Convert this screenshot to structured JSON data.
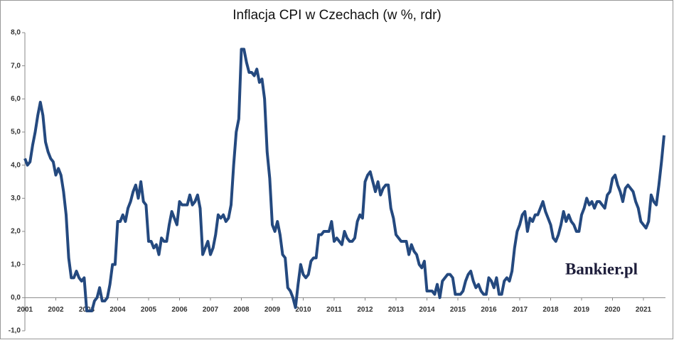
{
  "chart_data": {
    "type": "line",
    "title": "Inflacja CPI w Czechach (w %, rdr)",
    "brand": "Bankier.pl",
    "color": "#24497f",
    "categories": [
      "2001",
      null,
      null,
      null,
      null,
      null,
      null,
      null,
      null,
      null,
      null,
      null,
      "2002",
      null,
      null,
      null,
      null,
      null,
      null,
      null,
      null,
      null,
      null,
      null,
      "2003",
      null,
      null,
      null,
      null,
      null,
      null,
      null,
      null,
      null,
      null,
      null,
      "2004",
      null,
      null,
      null,
      null,
      null,
      null,
      null,
      null,
      null,
      null,
      null,
      "2005",
      null,
      null,
      null,
      null,
      null,
      null,
      null,
      null,
      null,
      null,
      null,
      "2006",
      null,
      null,
      null,
      null,
      null,
      null,
      null,
      null,
      null,
      null,
      null,
      "2007",
      null,
      null,
      null,
      null,
      null,
      null,
      null,
      null,
      null,
      null,
      null,
      "2008",
      null,
      null,
      null,
      null,
      null,
      null,
      null,
      null,
      null,
      null,
      null,
      "2009",
      null,
      null,
      null,
      null,
      null,
      null,
      null,
      null,
      null,
      null,
      null,
      "2010",
      null,
      null,
      null,
      null,
      null,
      null,
      null,
      null,
      null,
      null,
      null,
      "2011",
      null,
      null,
      null,
      null,
      null,
      null,
      null,
      null,
      null,
      null,
      null,
      "2012",
      null,
      null,
      null,
      null,
      null,
      null,
      null,
      null,
      null,
      null,
      null,
      "2013",
      null,
      null,
      null,
      null,
      null,
      null,
      null,
      null,
      null,
      null,
      null,
      "2014",
      null,
      null,
      null,
      null,
      null,
      null,
      null,
      null,
      null,
      null,
      null,
      "2015",
      null,
      null,
      null,
      null,
      null,
      null,
      null,
      null,
      null,
      null,
      null,
      "2016",
      null,
      null,
      null,
      null,
      null,
      null,
      null,
      null,
      null,
      null,
      null,
      "2017",
      null,
      null,
      null,
      null,
      null,
      null,
      null,
      null,
      null,
      null,
      null,
      "2018",
      null,
      null,
      null,
      null,
      null,
      null,
      null,
      null,
      null,
      null,
      null,
      "2019",
      null,
      null,
      null,
      null,
      null,
      null,
      null,
      null,
      null,
      null,
      null,
      "2020",
      null,
      null,
      null,
      null,
      null,
      null,
      null,
      null,
      null,
      null,
      null,
      "2021",
      null,
      null,
      null,
      null,
      null,
      null,
      null,
      null
    ],
    "values": [
      4.2,
      4.0,
      4.1,
      4.6,
      5.0,
      5.5,
      5.9,
      5.5,
      4.7,
      4.4,
      4.2,
      4.1,
      3.7,
      3.9,
      3.7,
      3.2,
      2.5,
      1.2,
      0.6,
      0.6,
      0.8,
      0.6,
      0.5,
      0.6,
      -0.4,
      -0.4,
      -0.4,
      -0.1,
      0.0,
      0.3,
      -0.1,
      -0.1,
      0.0,
      0.4,
      1.0,
      1.0,
      2.3,
      2.3,
      2.5,
      2.3,
      2.7,
      2.9,
      3.2,
      3.4,
      3.0,
      3.5,
      2.9,
      2.8,
      1.7,
      1.7,
      1.5,
      1.6,
      1.3,
      1.8,
      1.7,
      1.7,
      2.2,
      2.6,
      2.4,
      2.2,
      2.9,
      2.8,
      2.8,
      2.8,
      3.1,
      2.8,
      2.9,
      3.1,
      2.7,
      1.3,
      1.5,
      1.7,
      1.3,
      1.5,
      1.9,
      2.5,
      2.4,
      2.5,
      2.3,
      2.4,
      2.8,
      4.0,
      5.0,
      5.4,
      7.5,
      7.5,
      7.1,
      6.8,
      6.8,
      6.7,
      6.9,
      6.5,
      6.6,
      6.0,
      4.4,
      3.6,
      2.2,
      2.0,
      2.3,
      1.9,
      1.3,
      1.2,
      0.3,
      0.2,
      0.0,
      -0.3,
      0.4,
      1.0,
      0.7,
      0.6,
      0.7,
      1.1,
      1.2,
      1.2,
      1.9,
      1.9,
      2.0,
      2.0,
      2.0,
      2.3,
      1.7,
      1.8,
      1.7,
      1.6,
      2.0,
      1.8,
      1.7,
      1.7,
      1.8,
      2.3,
      2.5,
      2.4,
      3.5,
      3.7,
      3.8,
      3.5,
      3.2,
      3.5,
      3.1,
      3.3,
      3.4,
      3.4,
      2.7,
      2.4,
      1.9,
      1.8,
      1.7,
      1.7,
      1.7,
      1.3,
      1.6,
      1.4,
      1.3,
      1.0,
      0.9,
      1.1,
      0.2,
      0.2,
      0.2,
      0.1,
      0.4,
      0.0,
      0.5,
      0.6,
      0.7,
      0.7,
      0.6,
      0.1,
      0.1,
      0.1,
      0.2,
      0.5,
      0.7,
      0.8,
      0.5,
      0.3,
      0.4,
      0.2,
      0.1,
      0.1,
      0.6,
      0.5,
      0.3,
      0.6,
      0.1,
      0.1,
      0.5,
      0.6,
      0.5,
      0.8,
      1.5,
      2.0,
      2.2,
      2.5,
      2.6,
      2.0,
      2.4,
      2.3,
      2.5,
      2.5,
      2.7,
      2.9,
      2.6,
      2.4,
      2.2,
      1.8,
      1.7,
      1.9,
      2.2,
      2.6,
      2.3,
      2.5,
      2.3,
      2.2,
      2.0,
      2.0,
      2.5,
      2.7,
      3.0,
      2.8,
      2.9,
      2.7,
      2.9,
      2.9,
      2.8,
      2.7,
      3.1,
      3.2,
      3.6,
      3.7,
      3.4,
      3.2,
      2.9,
      3.3,
      3.4,
      3.3,
      3.2,
      2.9,
      2.7,
      2.3,
      2.2,
      2.1,
      2.3,
      3.1,
      2.9,
      2.8,
      3.4,
      4.1,
      4.9
    ],
    "ylim": [
      -1,
      8
    ],
    "yticks": [
      {
        "value": -1,
        "label": "-1,0"
      },
      {
        "value": 0,
        "label": "0,0"
      },
      {
        "value": 1,
        "label": "1,0"
      },
      {
        "value": 2,
        "label": "2,0"
      },
      {
        "value": 3,
        "label": "3,0"
      },
      {
        "value": 4,
        "label": "4,0"
      },
      {
        "value": 5,
        "label": "5,0"
      },
      {
        "value": 6,
        "label": "6,0"
      },
      {
        "value": 7,
        "label": "7,0"
      },
      {
        "value": 8,
        "label": "8,0"
      }
    ],
    "grid": false
  }
}
